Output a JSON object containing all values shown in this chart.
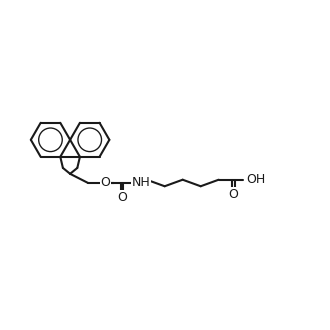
{
  "background_color": "#ffffff",
  "line_color": "#1a1a1a",
  "line_width": 1.5,
  "font_size": 9,
  "fig_size": [
    3.3,
    3.3
  ],
  "dpi": 100,
  "xlim": [
    0,
    10
  ],
  "ylim": [
    2,
    8.5
  ]
}
